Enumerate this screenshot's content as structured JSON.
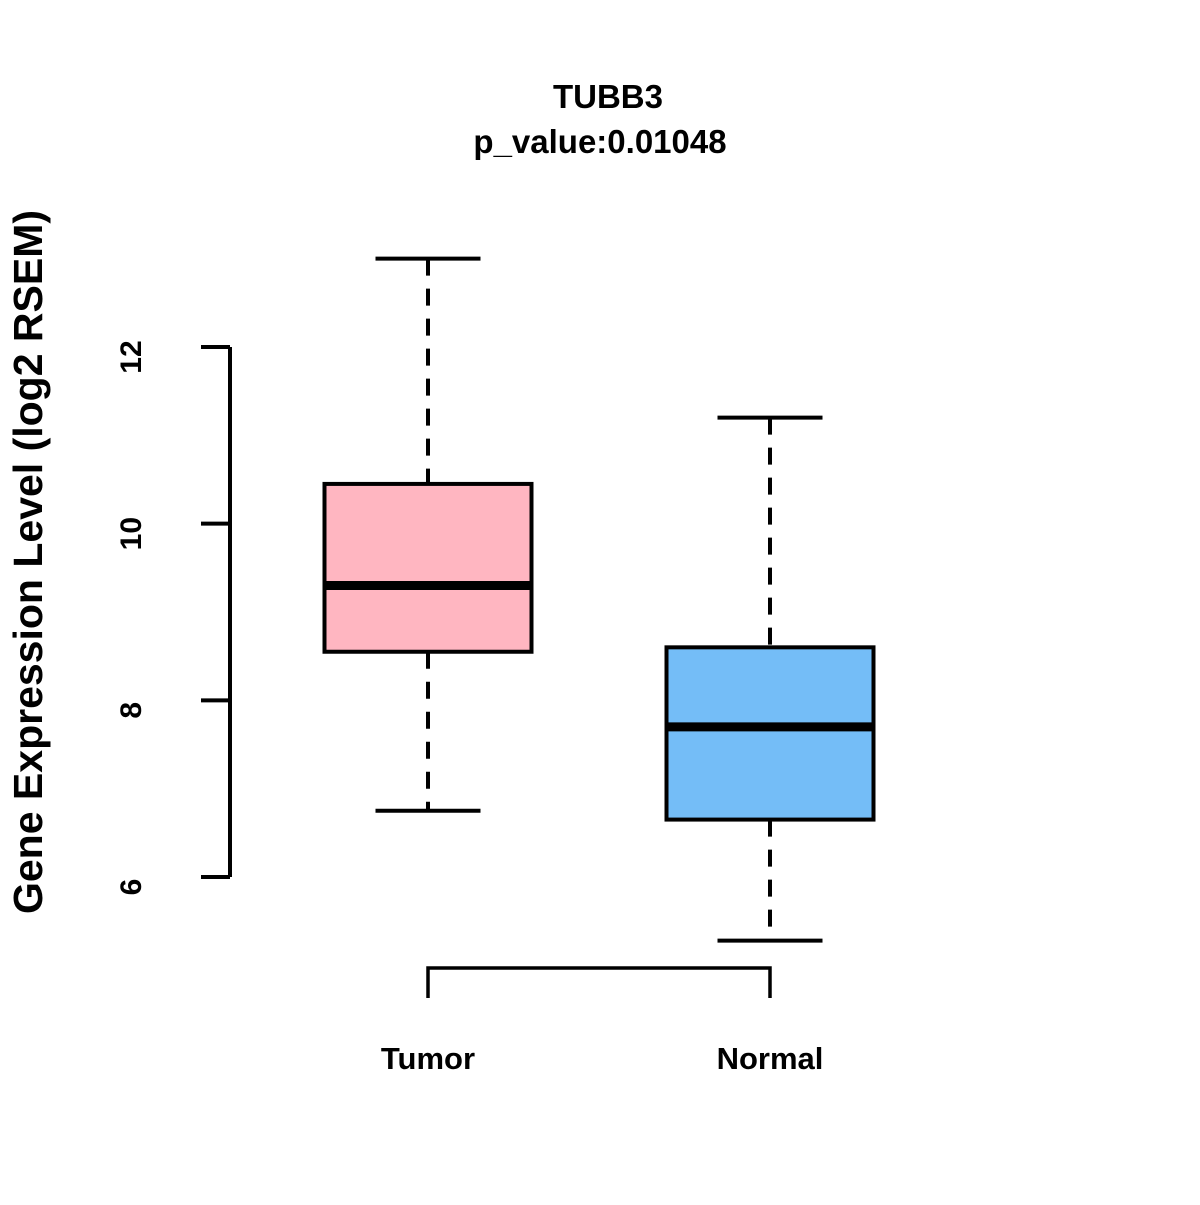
{
  "chart_data": {
    "type": "boxplot",
    "title": "TUBB3",
    "subtitle": "p_value:0.01048",
    "p_value": 0.01048,
    "ylabel": "Gene Expression Level (log2 RSEM)",
    "categories": [
      "Tumor",
      "Normal"
    ],
    "series": [
      {
        "name": "Tumor",
        "color": "#FFB6C1",
        "whisker_low": 6.75,
        "q1": 8.55,
        "median": 9.3,
        "q3": 10.45,
        "whisker_high": 13.0
      },
      {
        "name": "Normal",
        "color": "#74BDF7",
        "whisker_low": 5.28,
        "q1": 6.65,
        "median": 7.7,
        "q3": 8.6,
        "whisker_high": 11.2
      }
    ],
    "y_ticks": [
      6,
      8,
      10,
      12
    ],
    "ylim": [
      4.6,
      13.6
    ],
    "grid": false,
    "legend": "none",
    "significance_bracket": {
      "between": [
        "Tumor",
        "Normal"
      ],
      "bar_y": 4.97,
      "tick_drop_to": 4.63
    }
  }
}
